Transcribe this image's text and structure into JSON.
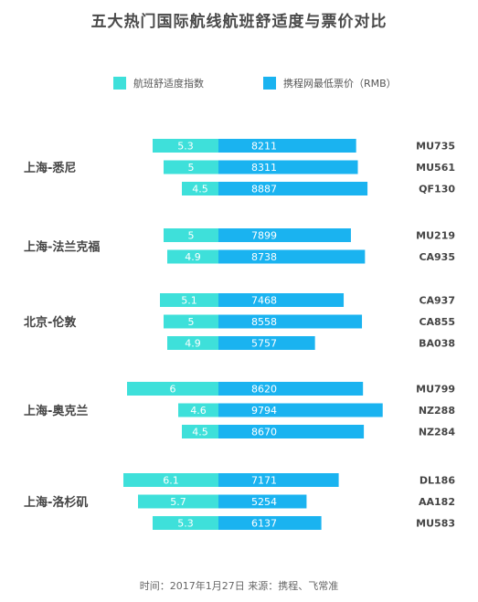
{
  "title": "五大热门国际航线航班舒适度与票价对比",
  "legend": {
    "comfort": {
      "label": "航班舒适度指数",
      "color": "#3ee0da"
    },
    "price": {
      "label": "携程网最低票价（RMB）",
      "color": "#1ab3f0"
    }
  },
  "footer": "时间：2017年1月27日   来源：携程、飞常准",
  "chart_data": {
    "type": "bar",
    "comfort_scale_min": 3.5,
    "series": [
      {
        "name": "航班舒适度指数",
        "color": "#3ee0da"
      },
      {
        "name": "携程网最低票价（RMB）",
        "color": "#1ab3f0"
      }
    ],
    "groups": [
      {
        "route": "上海-悉尼",
        "flights": [
          {
            "flight": "MU735",
            "comfort": 5.3,
            "price": 8211
          },
          {
            "flight": "MU561",
            "comfort": 5,
            "price": 8311
          },
          {
            "flight": "QF130",
            "comfort": 4.5,
            "price": 8887
          }
        ]
      },
      {
        "route": "上海-法兰克福",
        "flights": [
          {
            "flight": "MU219",
            "comfort": 5,
            "price": 7899
          },
          {
            "flight": "CA935",
            "comfort": 4.9,
            "price": 8738
          }
        ]
      },
      {
        "route": "北京-伦敦",
        "flights": [
          {
            "flight": "CA937",
            "comfort": 5.1,
            "price": 7468
          },
          {
            "flight": "CA855",
            "comfort": 5,
            "price": 8558
          },
          {
            "flight": "BA038",
            "comfort": 4.9,
            "price": 5757
          }
        ]
      },
      {
        "route": "上海-奥克兰",
        "flights": [
          {
            "flight": "MU799",
            "comfort": 6,
            "price": 8620
          },
          {
            "flight": "NZ288",
            "comfort": 4.6,
            "price": 9794
          },
          {
            "flight": "NZ284",
            "comfort": 4.5,
            "price": 8670
          }
        ]
      },
      {
        "route": "上海-洛杉矶",
        "flights": [
          {
            "flight": "DL186",
            "comfort": 6.1,
            "price": 7171
          },
          {
            "flight": "AA182",
            "comfort": 5.7,
            "price": 5254
          },
          {
            "flight": "MU583",
            "comfort": 5.3,
            "price": 6137
          }
        ]
      }
    ]
  }
}
